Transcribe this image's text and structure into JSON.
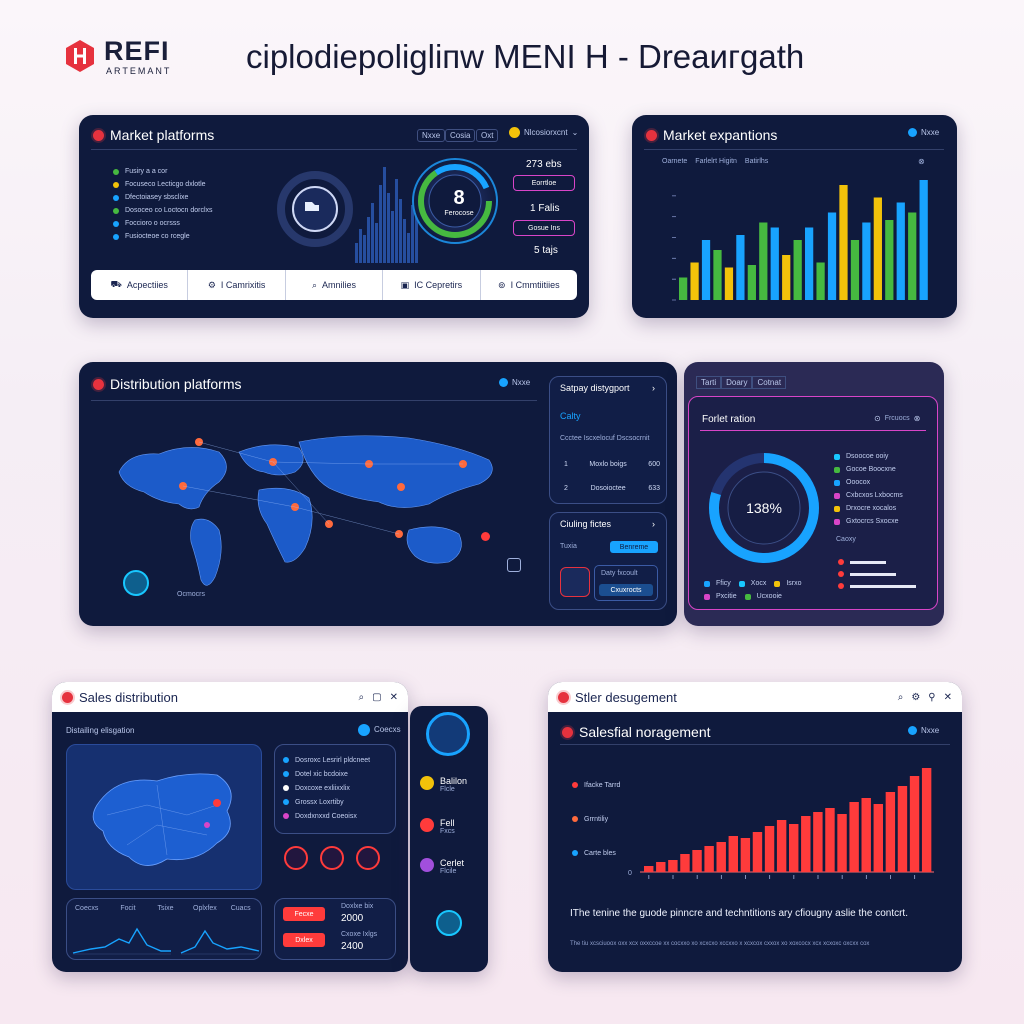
{
  "header": {
    "logo_text": "REFI",
    "logo_sub": "ARTEMANT",
    "title": "ciplodiepoligliпw MENI H - Dreaигgath"
  },
  "panel_market_platforms": {
    "title": "Market platforms",
    "tabs": [
      "Nxxe",
      "Cosia",
      "Oxt"
    ],
    "user_label": "Nlcosiorxcnt",
    "list": [
      "Fusiry a a cor",
      "Focuseco Lecticgo dxlotle",
      "Dfectoiasey sbsclixe",
      "Dosoceo co Loctocn dorclxs",
      "Foccioro o ocrsss",
      "Fusiocteoe co rcegle"
    ],
    "donut_value": "8",
    "donut_sub": "Ferocose",
    "stat_1": "273 ebs",
    "stat_2": "1 Falis",
    "stat_3": "5 tajs",
    "callout_1": "Eorrtloe",
    "callout_2": "Gosue Ins",
    "bottom": [
      "Acpectiies",
      "I Camrixitis",
      "Amnilies",
      "IC Cepretirs",
      "I Cmmtiitiies"
    ]
  },
  "panel_market_expansions": {
    "title": "Market expantions",
    "tab": "Nxxe",
    "legend": [
      "Oarnete",
      "Farlelrt Higitn",
      "Batirlhs"
    ],
    "chart_data": {
      "type": "bar",
      "title": "",
      "xlabel": "",
      "ylabel": "",
      "series_colors": [
        "#46b940",
        "#f2c20a",
        "#18a3ff"
      ],
      "values": [
        18,
        30,
        48,
        40,
        26,
        52,
        28,
        62,
        58,
        36,
        48,
        58,
        30,
        70,
        92,
        48,
        62,
        82,
        64,
        78,
        70,
        96
      ],
      "value_colors": [
        0,
        1,
        2,
        0,
        1,
        2,
        0,
        0,
        2,
        1,
        0,
        2,
        0,
        2,
        1,
        0,
        2,
        1,
        0,
        2,
        0,
        2
      ]
    }
  },
  "panel_distribution": {
    "title": "Distribution platforms",
    "tab": "Nxxe",
    "map_label": "Ocmocrs",
    "side_card": {
      "title": "Satpay distygport",
      "sub": "Calty",
      "line": "Ccctee Iscxelocuf Dscsocrnit",
      "rows": [
        {
          "n": "1",
          "label": "Moxlo boigs",
          "val": "600"
        },
        {
          "n": "2",
          "label": "Dosoioctee",
          "val": "633"
        }
      ]
    },
    "ciuling_card": {
      "title": "Ciuling fictes",
      "row_label": "Tuxia",
      "pill": "Benreme",
      "box_label": "Daty fxcoult",
      "box_btn": "Cxuxrocts"
    }
  },
  "panel_forlet": {
    "tabs": [
      "Tarti",
      "Doary",
      "Cotnat"
    ],
    "title": "Forlet ration",
    "btn": "Frcuocs",
    "donut_value": "138%",
    "legend_right": [
      "Dsoocoe ooiy",
      "Gocoe Boocxne",
      "Ooocox",
      "Cxbcxos Lxbocms",
      "Drxocre xocalos",
      "Gxtocrcs Sxocxe"
    ],
    "sub_label": "Caoxy",
    "legend_bottom": [
      "Fficy",
      "Xocx",
      "Isrxo",
      "Pxcitie",
      "Ucxooie"
    ]
  },
  "panel_sales_distribution": {
    "title": "Sales distribution",
    "sub": "Distailing elisgation",
    "list": [
      "Dosroxc Lesrirl pldcneet",
      "Dotel xic bcdoixe",
      "Doxcoxe exliixxlix",
      "Grossx Loxrtiby",
      "Doxdxnxxd Coeoisx"
    ],
    "stats_labels": [
      "Coecxs",
      "Focit",
      "Tsixe"
    ],
    "stats_labels_2": [
      "Oplxfex",
      "Cuacs"
    ],
    "num_1": "2000",
    "num_1_label": "Doxlxe bix",
    "num_2": "2400",
    "num_2_label": "Cxoxe Ixlgs",
    "btn_1": "Fecxe",
    "btn_2": "Dxlex",
    "side": [
      {
        "label": "Balilon",
        "sub": "Flcle"
      },
      {
        "label": "Fell",
        "sub": "Fxcs"
      },
      {
        "label": "Cerlet",
        "sub": "Flcile"
      }
    ]
  },
  "panel_sales_mgmt": {
    "window_title": "Stler desugement",
    "title": "Salesfial noragement",
    "tab": "Nxxe",
    "legend": [
      "Ifacke Tarrd",
      "Grrntiliy",
      "Carte bles"
    ],
    "zero": "0",
    "chart_data": {
      "type": "bar",
      "title": "",
      "xlabel": "",
      "ylabel": "",
      "values": [
        6,
        10,
        12,
        18,
        22,
        26,
        30,
        36,
        34,
        40,
        46,
        52,
        48,
        56,
        60,
        64,
        58,
        70,
        74,
        68,
        80,
        86,
        96,
        104
      ]
    },
    "text_main": "IThe tenine the guode pinncre and techntitions ary cfiougny aslie the contcrt.",
    "text_sub": "The tiu xcsciuoox oxx xcx oxxccoe xx cocxxo xo xcxcxo xccxxo x xcxcox cxxox xo xoxcocx xcx xcxoxc oxcxx cox"
  },
  "colors": {
    "panel": "#0f1a3d",
    "accent_blue": "#18a3ff",
    "accent_green": "#46b940",
    "accent_yellow": "#f2c20a",
    "accent_red": "#ff3b3b",
    "accent_pink": "#d845c8"
  }
}
